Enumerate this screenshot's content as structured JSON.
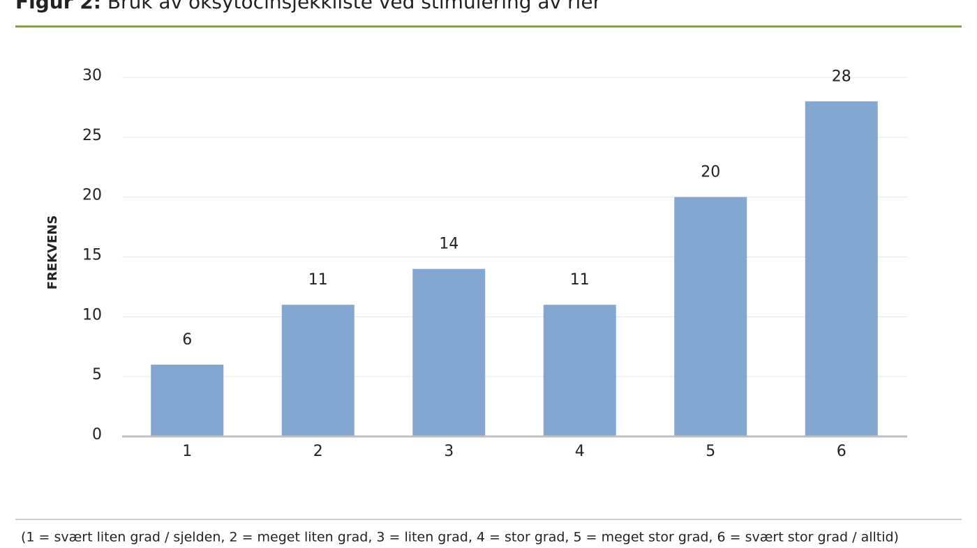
{
  "chart_data": {
    "type": "bar",
    "title_prefix": "Figur 2:",
    "title": "Bruk av oksytocinsjekkliste ved stimulering av rier",
    "y_label": "FREKVENS",
    "categories": [
      "1",
      "2",
      "3",
      "4",
      "5",
      "6"
    ],
    "values": [
      6,
      11,
      14,
      11,
      20,
      28
    ],
    "color": "#84a7d1",
    "ylim": [
      0,
      30
    ],
    "yticks": [
      0,
      5,
      10,
      15,
      20,
      25,
      30
    ],
    "grid": true,
    "note": "(1 = svært liten grad / sjelden, 2 = meget liten grad, 3 = liten grad, 4 = stor grad, 5 = meget stor grad, 6 = svært stor grad / alltid)"
  }
}
